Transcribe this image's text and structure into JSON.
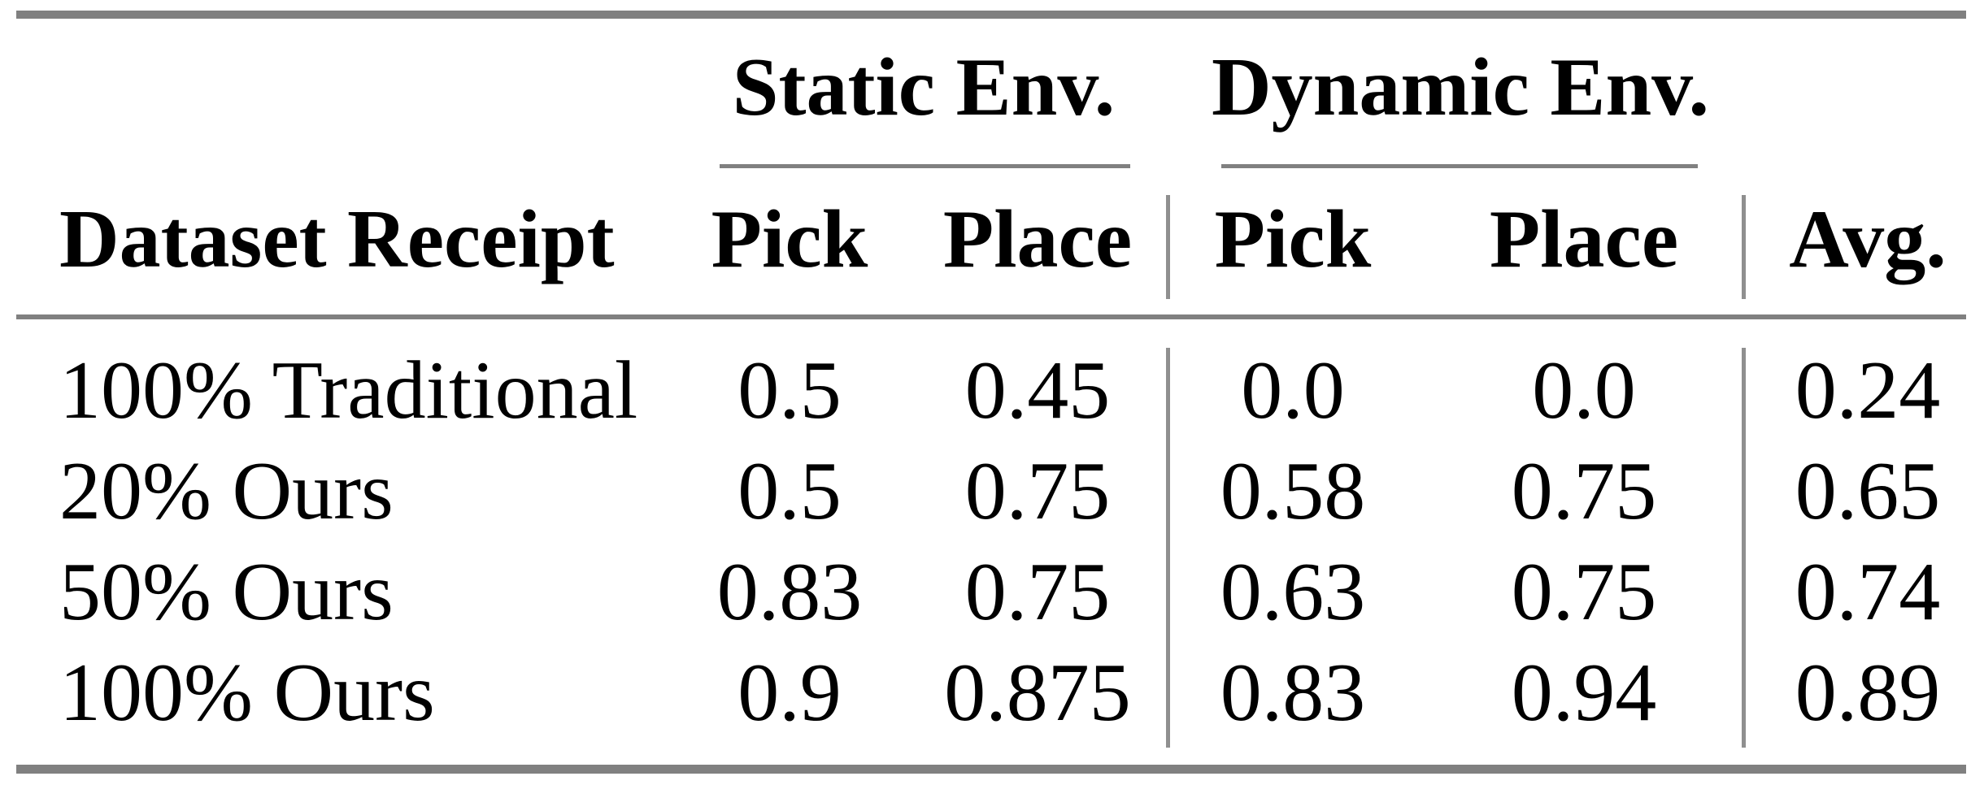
{
  "table": {
    "row_header": "Dataset Receipt",
    "groups": [
      {
        "label": "Static Env.",
        "children": [
          "Pick",
          "Place"
        ]
      },
      {
        "label": "Dynamic Env.",
        "children": [
          "Pick",
          "Place"
        ]
      }
    ],
    "avg_header": "Avg.",
    "rows": [
      {
        "label": "100% Traditional",
        "values": [
          "0.5",
          "0.45",
          "0.0",
          "0.0",
          "0.24"
        ]
      },
      {
        "label": "20% Ours",
        "values": [
          "0.5",
          "0.75",
          "0.58",
          "0.75",
          "0.65"
        ]
      },
      {
        "label": "50% Ours",
        "values": [
          "0.83",
          "0.75",
          "0.63",
          "0.75",
          "0.74"
        ]
      },
      {
        "label": "100% Ours",
        "values": [
          "0.9",
          "0.875",
          "0.83",
          "0.94",
          "0.89"
        ]
      }
    ]
  },
  "colors": {
    "rule_gray": "#808080",
    "separator_gray": "#8f8f8f",
    "text": "#000000",
    "background": "#ffffff"
  },
  "chart_data": {
    "type": "table",
    "columns": [
      "Dataset Receipt",
      "Static Env. Pick",
      "Static Env. Place",
      "Dynamic Env. Pick",
      "Dynamic Env. Place",
      "Avg."
    ],
    "rows": [
      [
        "100% Traditional",
        0.5,
        0.45,
        0.0,
        0.0,
        0.24
      ],
      [
        "20% Ours",
        0.5,
        0.75,
        0.58,
        0.75,
        0.65
      ],
      [
        "50% Ours",
        0.83,
        0.75,
        0.63,
        0.75,
        0.74
      ],
      [
        "100% Ours",
        0.9,
        0.875,
        0.83,
        0.94,
        0.89
      ]
    ]
  }
}
